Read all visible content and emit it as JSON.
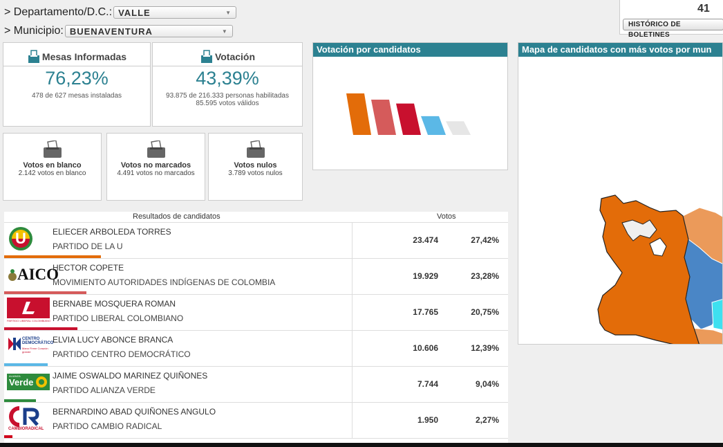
{
  "filters": {
    "departamento": {
      "label": "> Departamento/D.C.:",
      "value": "VALLE"
    },
    "municipio": {
      "label": "> Municipio:",
      "value": "BUENAVENTURA"
    }
  },
  "top_right": {
    "count": "41",
    "boletines_button": "HISTÓRICO DE BOLETINES"
  },
  "mesas": {
    "title": "Mesas Informadas",
    "percent": "76,23%",
    "detail": "478 de 627 mesas instaladas"
  },
  "votacion": {
    "title": "Votación",
    "percent": "43,39%",
    "detail1": "93.875 de 216.333 personas habilitadas",
    "detail2": "85.595 votos válidos"
  },
  "blanco": {
    "title": "Votos en blanco",
    "detail": "2.142 votos en blanco"
  },
  "no_marcados": {
    "title": "Votos no marcados",
    "detail": "4.491 votos no marcados"
  },
  "nulos": {
    "title": "Votos nulos",
    "detail": "3.789 votos nulos"
  },
  "chart_panel": {
    "title": "Votación por candidatos"
  },
  "map_panel": {
    "title": "Mapa de candidatos con más votos por mun"
  },
  "results": {
    "col_candidates": "Resultados de candidatos",
    "col_votes": "Votos",
    "rows": [
      {
        "name": "ELIECER ARBOLEDA TORRES",
        "party": "PARTIDO DE LA U",
        "votes": "23.474",
        "pct": "27,42%",
        "share": 27.42,
        "color": "#e36c09",
        "logo": "partido-de-la-u-logo"
      },
      {
        "name": "HECTOR COPETE",
        "party": "MOVIMIENTO AUTORIDADES INDÍGENAS DE COLOMBIA",
        "votes": "19.929",
        "pct": "23,28%",
        "share": 23.28,
        "color": "#d55b5b",
        "logo": "aico-logo",
        "logo_text": "AICO"
      },
      {
        "name": "BERNABE MOSQUERA ROMAN",
        "party": "PARTIDO LIBERAL COLOMBIANO",
        "votes": "17.765",
        "pct": "20,75%",
        "share": 20.75,
        "color": "#c8102e",
        "logo": "partido-liberal-logo",
        "logo_text": "PARTIDO LIBERAL COLOMBIANO"
      },
      {
        "name": "ELVIA LUCY ABONCE BRANCA",
        "party": "PARTIDO CENTRO DEMOCRÁTICO",
        "votes": "10.606",
        "pct": "12,39%",
        "share": 12.39,
        "color": "#5bb8e6",
        "logo": "centro-democratico-logo",
        "logo_text": "CENTRO DEMOCRÁTICO",
        "logo_sub": "Mano Firme Corazón grande"
      },
      {
        "name": "JAIME OSWALDO MARINEZ QUIÑONES",
        "party": "PARTIDO ALIANZA VERDE",
        "votes": "7.744",
        "pct": "9,04%",
        "share": 9.04,
        "color": "#2e8b3d",
        "logo": "alianza-verde-logo",
        "logo_text": "Verde",
        "logo_sub": "ALIANZA"
      },
      {
        "name": "BERNARDINO ABAD QUIÑONES ANGULO",
        "party": "PARTIDO CAMBIO RADICAL",
        "votes": "1.950",
        "pct": "2,27%",
        "share": 2.27,
        "color": "#d0021b",
        "logo": "cambio-radical-logo",
        "logo_text": "CAMBIORADICAL"
      }
    ]
  },
  "chart_data": {
    "type": "bar",
    "categories": [
      "ELIECER ARBOLEDA TORRES",
      "HECTOR COPETE",
      "BERNABE MOSQUERA ROMAN",
      "ELVIA LUCY ABONCE BRANCA",
      "JAIME OSWALDO MARINEZ QUIÑONES"
    ],
    "values": [
      27.42,
      23.28,
      20.75,
      12.39,
      9.04
    ],
    "colors": [
      "#e36c09",
      "#d55b5b",
      "#c8102e",
      "#5bb8e6",
      "#e6e6e6"
    ],
    "title": "Votación por candidatos"
  }
}
